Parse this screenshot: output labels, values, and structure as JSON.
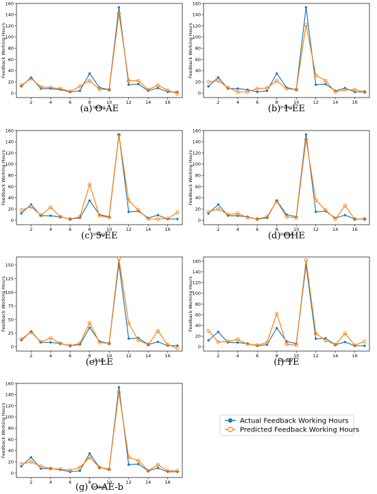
{
  "colors": {
    "actual": "#1f77b4",
    "predicted": "#ff7f0e"
  },
  "legend": {
    "placement": "lower-right",
    "entries": [
      "Actual Feedback Working Hours",
      "Predicted Feedback Working Hours"
    ]
  },
  "chart_data": [
    {
      "type": "line",
      "caption": "(a) O-AE",
      "xlabel": "Index",
      "ylabel": "Feedback Working Hours",
      "xlim": [
        0.5,
        17.5
      ],
      "ylim": [
        -8,
        160
      ],
      "xticks": [
        2,
        4,
        6,
        8,
        10,
        12,
        14,
        16
      ],
      "yticks": [
        0,
        20,
        40,
        60,
        80,
        100,
        120,
        140,
        160
      ],
      "x": [
        1,
        2,
        3,
        4,
        5,
        6,
        7,
        8,
        9,
        10,
        11,
        12,
        13,
        14,
        15,
        16,
        17
      ],
      "series": [
        {
          "name": "Actual Feedback Working Hours",
          "values": [
            12,
            28,
            8,
            8,
            6,
            2,
            4,
            35,
            10,
            6,
            153,
            15,
            16,
            4,
            9,
            2,
            2
          ]
        },
        {
          "name": "Predicted Feedback Working Hours",
          "values": [
            14,
            26,
            11,
            10,
            8,
            3,
            12,
            22,
            7,
            6,
            142,
            22,
            22,
            6,
            14,
            5,
            -1
          ]
        }
      ]
    },
    {
      "type": "line",
      "caption": "(b) 1-EE",
      "xlabel": "Index",
      "ylabel": "Feedback Working Hours",
      "xlim": [
        0.5,
        17.5
      ],
      "ylim": [
        -8,
        160
      ],
      "xticks": [
        2,
        4,
        6,
        8,
        10,
        12,
        14,
        16
      ],
      "yticks": [
        0,
        20,
        40,
        60,
        80,
        100,
        120,
        140,
        160
      ],
      "x": [
        1,
        2,
        3,
        4,
        5,
        6,
        7,
        8,
        9,
        10,
        11,
        12,
        13,
        14,
        15,
        16,
        17
      ],
      "series": [
        {
          "name": "Actual Feedback Working Hours",
          "values": [
            12,
            28,
            8,
            8,
            6,
            2,
            4,
            35,
            10,
            6,
            153,
            15,
            16,
            4,
            9,
            2,
            2
          ]
        },
        {
          "name": "Predicted Feedback Working Hours",
          "values": [
            20,
            22,
            10,
            2,
            2,
            8,
            9,
            22,
            8,
            6,
            122,
            32,
            22,
            2,
            6,
            6,
            2
          ]
        }
      ]
    },
    {
      "type": "line",
      "caption": "(c) 5-EE",
      "xlabel": "Index",
      "ylabel": "Feedback Working Hours",
      "xlim": [
        0.5,
        17.5
      ],
      "ylim": [
        -8,
        160
      ],
      "xticks": [
        2,
        4,
        6,
        8,
        10,
        12,
        14,
        16
      ],
      "yticks": [
        0,
        20,
        40,
        60,
        80,
        100,
        120,
        140,
        160
      ],
      "x": [
        1,
        2,
        3,
        4,
        5,
        6,
        7,
        8,
        9,
        10,
        11,
        12,
        13,
        14,
        15,
        16,
        17
      ],
      "series": [
        {
          "name": "Actual Feedback Working Hours",
          "values": [
            12,
            28,
            8,
            8,
            6,
            2,
            4,
            35,
            10,
            6,
            153,
            15,
            16,
            4,
            9,
            2,
            2
          ]
        },
        {
          "name": "Predicted Feedback Working Hours",
          "values": [
            18,
            24,
            9,
            23,
            6,
            2,
            6,
            64,
            8,
            5,
            152,
            35,
            18,
            2,
            2,
            3,
            14
          ]
        }
      ]
    },
    {
      "type": "line",
      "caption": "(d) OHE",
      "xlabel": "Index",
      "ylabel": "Feedback Working Hours",
      "xlim": [
        0.5,
        17.5
      ],
      "ylim": [
        -8,
        160
      ],
      "xticks": [
        2,
        4,
        6,
        8,
        10,
        12,
        14,
        16
      ],
      "yticks": [
        0,
        20,
        40,
        60,
        80,
        100,
        120,
        140,
        160
      ],
      "x": [
        1,
        2,
        3,
        4,
        5,
        6,
        7,
        8,
        9,
        10,
        11,
        12,
        13,
        14,
        15,
        16,
        17
      ],
      "series": [
        {
          "name": "Actual Feedback Working Hours",
          "values": [
            12,
            28,
            8,
            8,
            6,
            2,
            4,
            35,
            10,
            6,
            153,
            15,
            16,
            4,
            9,
            2,
            2
          ]
        },
        {
          "name": "Predicted Feedback Working Hours",
          "values": [
            15,
            20,
            10,
            12,
            5,
            2,
            6,
            34,
            6,
            4,
            144,
            36,
            18,
            2,
            26,
            2,
            2
          ]
        }
      ]
    },
    {
      "type": "line",
      "caption": "(e) LE",
      "xlabel": "Index",
      "ylabel": "Feedback Working Hours",
      "xlim": [
        0.5,
        17.5
      ],
      "ylim": [
        -8,
        165
      ],
      "xticks": [
        2,
        4,
        6,
        8,
        10,
        12,
        14,
        16
      ],
      "yticks": [
        0,
        25,
        50,
        75,
        100,
        125,
        150
      ],
      "x": [
        1,
        2,
        3,
        4,
        5,
        6,
        7,
        8,
        9,
        10,
        11,
        12,
        13,
        14,
        15,
        16,
        17
      ],
      "series": [
        {
          "name": "Actual Feedback Working Hours",
          "values": [
            12,
            28,
            8,
            8,
            6,
            2,
            4,
            35,
            10,
            6,
            153,
            15,
            16,
            4,
            9,
            2,
            2
          ]
        },
        {
          "name": "Predicted Feedback Working Hours",
          "values": [
            14,
            27,
            9,
            16,
            6,
            2,
            6,
            44,
            8,
            6,
            162,
            43,
            12,
            4,
            29,
            4,
            -3
          ]
        }
      ]
    },
    {
      "type": "line",
      "caption": "(f) TE",
      "xlabel": "Index",
      "ylabel": "Feedback Working Hours",
      "xlim": [
        0.5,
        17.5
      ],
      "ylim": [
        -8,
        168
      ],
      "xticks": [
        2,
        4,
        6,
        8,
        10,
        12,
        14,
        16
      ],
      "yticks": [
        0,
        20,
        40,
        60,
        80,
        100,
        120,
        140,
        160
      ],
      "x": [
        1,
        2,
        3,
        4,
        5,
        6,
        7,
        8,
        9,
        10,
        11,
        12,
        13,
        14,
        15,
        16,
        17
      ],
      "series": [
        {
          "name": "Actual Feedback Working Hours",
          "values": [
            12,
            28,
            8,
            8,
            6,
            2,
            4,
            35,
            10,
            6,
            153,
            15,
            16,
            4,
            9,
            2,
            2
          ]
        },
        {
          "name": "Predicted Feedback Working Hours",
          "values": [
            30,
            9,
            10,
            14,
            5,
            3,
            8,
            62,
            5,
            3,
            162,
            25,
            12,
            4,
            25,
            3,
            10
          ]
        }
      ]
    },
    {
      "type": "line",
      "caption": "(g) O-AE-b",
      "xlabel": "Index",
      "ylabel": "Feedback Working Hours",
      "xlim": [
        0.5,
        17.5
      ],
      "ylim": [
        -8,
        160
      ],
      "xticks": [
        2,
        4,
        6,
        8,
        10,
        12,
        14,
        16
      ],
      "yticks": [
        0,
        20,
        40,
        60,
        80,
        100,
        120,
        140,
        160
      ],
      "x": [
        1,
        2,
        3,
        4,
        5,
        6,
        7,
        8,
        9,
        10,
        11,
        12,
        13,
        14,
        15,
        16,
        17
      ],
      "series": [
        {
          "name": "Actual Feedback Working Hours",
          "values": [
            12,
            28,
            8,
            8,
            6,
            2,
            4,
            35,
            10,
            6,
            153,
            15,
            16,
            4,
            9,
            2,
            2
          ]
        },
        {
          "name": "Predicted Feedback Working Hours",
          "values": [
            16,
            20,
            12,
            8,
            7,
            5,
            10,
            28,
            10,
            7,
            144,
            28,
            22,
            4,
            15,
            4,
            4
          ]
        }
      ]
    }
  ]
}
